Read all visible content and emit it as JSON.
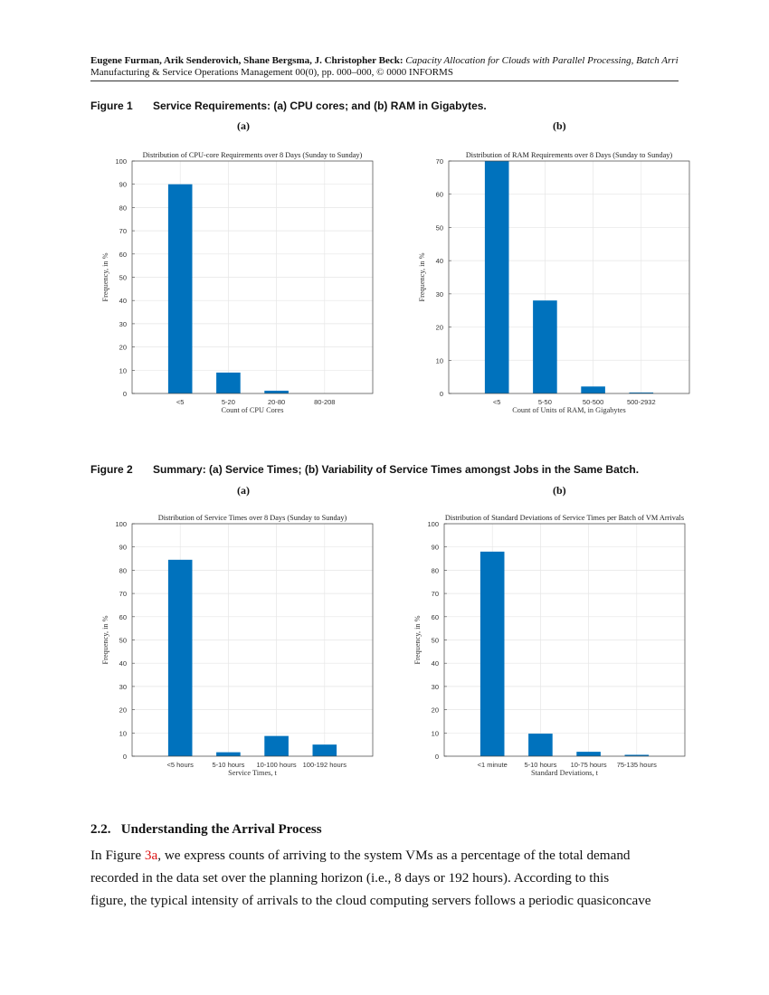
{
  "header": {
    "authors": "Eugene Furman, Arik Senderovich, Shane Bergsma, J. Christopher Beck:",
    "title": "Capacity Allocation for Clouds with Parallel Processing, Batch Arri",
    "journal": "Manufacturing & Service Operations Management 00(0), pp. 000–000, © 0000 INFORMS"
  },
  "figure1": {
    "label": "Figure 1",
    "caption": "Service Requirements: (a) CPU cores; and (b) RAM in Gigabytes.",
    "sub_a": "(a)",
    "sub_b": "(b)"
  },
  "figure2": {
    "label": "Figure 2",
    "caption": "Summary: (a) Service Times; (b) Variability of Service Times amongst Jobs in the Same Batch.",
    "sub_a": "(a)",
    "sub_b": "(b)"
  },
  "section": {
    "number": "2.2.",
    "title": "Understanding the Arrival Process"
  },
  "paragraph": {
    "line1_pre": "In Figure ",
    "link": "3a",
    "line1_post": ", we express counts of arriving to the system VMs as a percentage of the total demand",
    "line2": "recorded in the data set over the planning horizon (i.e., 8 days or 192 hours). According to this",
    "line3": "figure, the typical intensity of arrivals to the cloud computing servers follows a periodic quasiconcave"
  },
  "bar_color": "#0072bd",
  "chart_data": [
    {
      "type": "bar",
      "title": "Distribution of CPU-core Requirements over 8 Days (Sunday to Sunday)",
      "xlabel": "Count of CPU Cores",
      "ylabel": "Frequency, in %",
      "categories": [
        "<5",
        "5-20",
        "20-80",
        "80-208"
      ],
      "values": [
        90,
        9,
        1.2,
        0
      ],
      "ylim": [
        0,
        100
      ],
      "yticks": [
        0,
        10,
        20,
        30,
        40,
        50,
        60,
        70,
        80,
        90,
        100
      ],
      "grid": true
    },
    {
      "type": "bar",
      "title": "Distribution of RAM Requirements over 8 Days (Sunday to Sunday)",
      "xlabel": "Count of Units of RAM, in Gigabytes",
      "ylabel": "Frequency, in %",
      "categories": [
        "<5",
        "5-50",
        "50-500",
        "500-2932"
      ],
      "values": [
        70,
        28,
        2.1,
        0.3
      ],
      "ylim": [
        0,
        70
      ],
      "yticks": [
        0,
        10,
        20,
        30,
        40,
        50,
        60,
        70
      ],
      "grid": true
    },
    {
      "type": "bar",
      "title": "Distribution of Service Times over 8 Days (Sunday to Sunday)",
      "xlabel": "Service Times, t",
      "ylabel": "Frequency, in %",
      "categories": [
        "<5 hours",
        "5-10 hours",
        "10-100 hours",
        "100-192 hours"
      ],
      "values": [
        84.5,
        1.7,
        8.7,
        5
      ],
      "ylim": [
        0,
        100
      ],
      "yticks": [
        0,
        10,
        20,
        30,
        40,
        50,
        60,
        70,
        80,
        90,
        100
      ],
      "grid": true
    },
    {
      "type": "bar",
      "title": "Distribution of Standard Deviations of Service Times per Batch of VM Arrivals",
      "xlabel": "Standard Deviations, t",
      "ylabel": "Frequency, in %",
      "categories": [
        "<1 minute",
        "5-10 hours",
        "10-75 hours",
        "75-135 hours"
      ],
      "values": [
        88,
        9.7,
        1.9,
        0.6
      ],
      "ylim": [
        0,
        100
      ],
      "yticks": [
        0,
        10,
        20,
        30,
        40,
        50,
        60,
        70,
        80,
        90,
        100
      ],
      "grid": true
    }
  ]
}
